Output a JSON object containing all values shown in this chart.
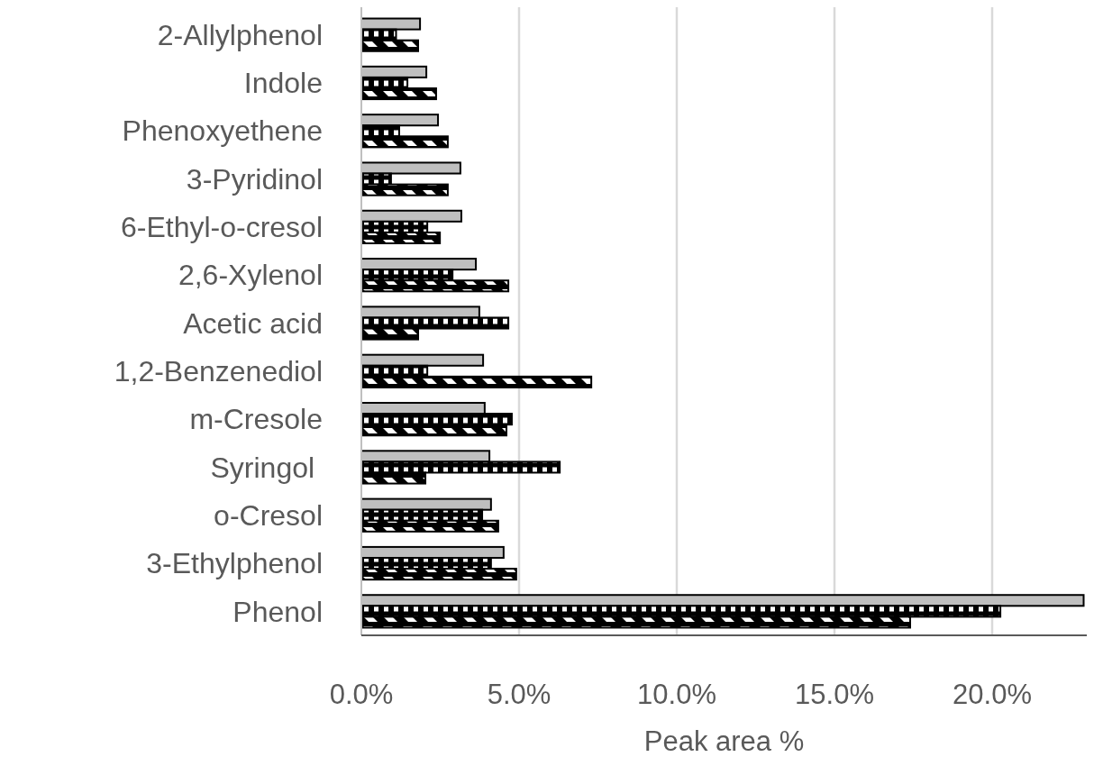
{
  "chart_data": {
    "type": "bar",
    "orientation": "horizontal",
    "xlabel": "Peak area %",
    "categories": [
      "2-Allylphenol",
      "Indole",
      "Phenoxyethene",
      "3-Pyridinol",
      "6-Ethyl-o-cresol",
      "2,6-Xylenol",
      "Acetic acid",
      "1,2-Benzenediol",
      "m-Cresole",
      "Syringol ",
      "o-Cresol",
      "3-Ethylphenol",
      "Phenol"
    ],
    "series": [
      {
        "color": "#bfbfbf",
        "values": [
          1.86,
          2.06,
          2.43,
          3.14,
          3.17,
          3.63,
          3.74,
          3.86,
          3.91,
          4.06,
          4.11,
          4.51,
          22.9
        ]
      },
      {
        "color": "#000000",
        "values": [
          1.1,
          1.46,
          1.2,
          0.94,
          2.09,
          2.89,
          4.66,
          2.09,
          4.77,
          6.29,
          3.83,
          4.11,
          20.26
        ]
      },
      {
        "color": "#000000",
        "values": [
          1.8,
          2.37,
          2.74,
          2.74,
          2.49,
          4.66,
          1.8,
          7.29,
          4.6,
          2.03,
          4.34,
          4.91,
          17.4
        ]
      }
    ],
    "xlim": [
      0,
      23
    ],
    "xticks": [
      {
        "value": 0,
        "label": "0.0%"
      },
      {
        "value": 5,
        "label": "5.0%"
      },
      {
        "value": 10,
        "label": "10.0%"
      },
      {
        "value": 15,
        "label": "15.0%"
      },
      {
        "value": 20,
        "label": "20.0%"
      }
    ],
    "grid": "x"
  }
}
